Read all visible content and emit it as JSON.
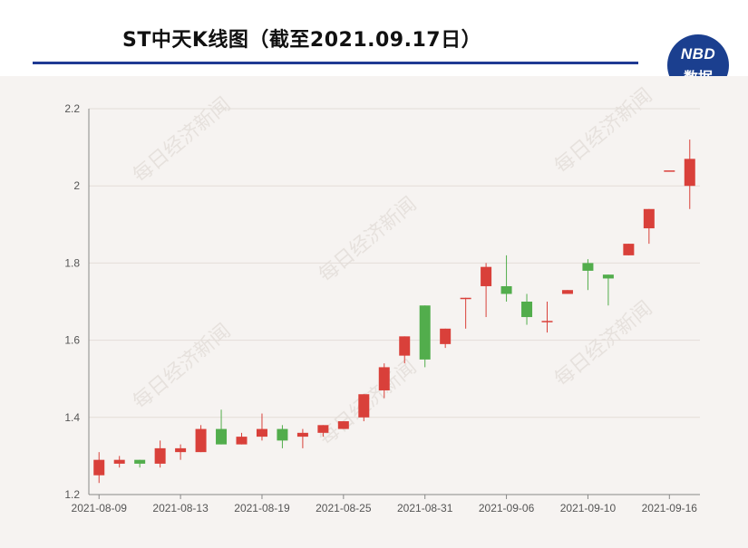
{
  "header": {
    "title": "ST中天K线图（截至2021.09.17日）",
    "logo_line1": "NBD",
    "logo_line2": "数据"
  },
  "watermark": "每日经济新闻",
  "colors": {
    "up": "#d9403a",
    "down": "#52ad4c",
    "rule": "#1f3a93",
    "logo_bg": "#1b3f8f",
    "panel": "#f6f3f1"
  },
  "chart_data": {
    "type": "candlestick",
    "title": "ST中天K线图（截至2021.09.17日）",
    "ylim": [
      1.2,
      2.2
    ],
    "yticks": [
      "1.2",
      "1.4",
      "1.6",
      "1.8",
      "2",
      "2.2"
    ],
    "xticks": [
      "2021-08-09",
      "2021-08-13",
      "2021-08-19",
      "2021-08-25",
      "2021-08-31",
      "2021-09-06",
      "2021-09-10",
      "2021-09-16"
    ],
    "grid": "horizontal",
    "candles": [
      {
        "date": "2021-08-09",
        "open": 1.25,
        "close": 1.29,
        "low": 1.23,
        "high": 1.31
      },
      {
        "date": "2021-08-10",
        "open": 1.28,
        "close": 1.29,
        "low": 1.27,
        "high": 1.3
      },
      {
        "date": "2021-08-11",
        "open": 1.29,
        "close": 1.28,
        "low": 1.27,
        "high": 1.29
      },
      {
        "date": "2021-08-12",
        "open": 1.28,
        "close": 1.32,
        "low": 1.27,
        "high": 1.34
      },
      {
        "date": "2021-08-13",
        "open": 1.31,
        "close": 1.32,
        "low": 1.29,
        "high": 1.33
      },
      {
        "date": "2021-08-16",
        "open": 1.31,
        "close": 1.37,
        "low": 1.31,
        "high": 1.38
      },
      {
        "date": "2021-08-17",
        "open": 1.37,
        "close": 1.33,
        "low": 1.33,
        "high": 1.42
      },
      {
        "date": "2021-08-18",
        "open": 1.33,
        "close": 1.35,
        "low": 1.33,
        "high": 1.36
      },
      {
        "date": "2021-08-19",
        "open": 1.35,
        "close": 1.37,
        "low": 1.34,
        "high": 1.41
      },
      {
        "date": "2021-08-20",
        "open": 1.37,
        "close": 1.34,
        "low": 1.32,
        "high": 1.38
      },
      {
        "date": "2021-08-23",
        "open": 1.35,
        "close": 1.36,
        "low": 1.32,
        "high": 1.37
      },
      {
        "date": "2021-08-24",
        "open": 1.36,
        "close": 1.38,
        "low": 1.35,
        "high": 1.38
      },
      {
        "date": "2021-08-25",
        "open": 1.37,
        "close": 1.39,
        "low": 1.37,
        "high": 1.39
      },
      {
        "date": "2021-08-26",
        "open": 1.4,
        "close": 1.46,
        "low": 1.39,
        "high": 1.46
      },
      {
        "date": "2021-08-27",
        "open": 1.47,
        "close": 1.53,
        "low": 1.45,
        "high": 1.54
      },
      {
        "date": "2021-08-30",
        "open": 1.56,
        "close": 1.61,
        "low": 1.54,
        "high": 1.61
      },
      {
        "date": "2021-08-31",
        "open": 1.69,
        "close": 1.55,
        "low": 1.53,
        "high": 1.69
      },
      {
        "date": "2021-09-01",
        "open": 1.59,
        "close": 1.63,
        "low": 1.58,
        "high": 1.63
      },
      {
        "date": "2021-09-02",
        "open": 1.71,
        "close": 1.71,
        "low": 1.63,
        "high": 1.71
      },
      {
        "date": "2021-09-03",
        "open": 1.74,
        "close": 1.79,
        "low": 1.66,
        "high": 1.8
      },
      {
        "date": "2021-09-06",
        "open": 1.74,
        "close": 1.72,
        "low": 1.7,
        "high": 1.82
      },
      {
        "date": "2021-09-07",
        "open": 1.7,
        "close": 1.66,
        "low": 1.64,
        "high": 1.72
      },
      {
        "date": "2021-09-08",
        "open": 1.65,
        "close": 1.65,
        "low": 1.62,
        "high": 1.7
      },
      {
        "date": "2021-09-09",
        "open": 1.72,
        "close": 1.73,
        "low": 1.72,
        "high": 1.73
      },
      {
        "date": "2021-09-10",
        "open": 1.8,
        "close": 1.78,
        "low": 1.73,
        "high": 1.81
      },
      {
        "date": "2021-09-13",
        "open": 1.77,
        "close": 1.76,
        "low": 1.69,
        "high": 1.77
      },
      {
        "date": "2021-09-14",
        "open": 1.82,
        "close": 1.85,
        "low": 1.82,
        "high": 1.85
      },
      {
        "date": "2021-09-15",
        "open": 1.89,
        "close": 1.94,
        "low": 1.85,
        "high": 1.94
      },
      {
        "date": "2021-09-16",
        "open": 2.04,
        "close": 2.04,
        "low": 2.04,
        "high": 2.04
      },
      {
        "date": "2021-09-17",
        "open": 2.0,
        "close": 2.07,
        "low": 1.94,
        "high": 2.12
      }
    ]
  }
}
